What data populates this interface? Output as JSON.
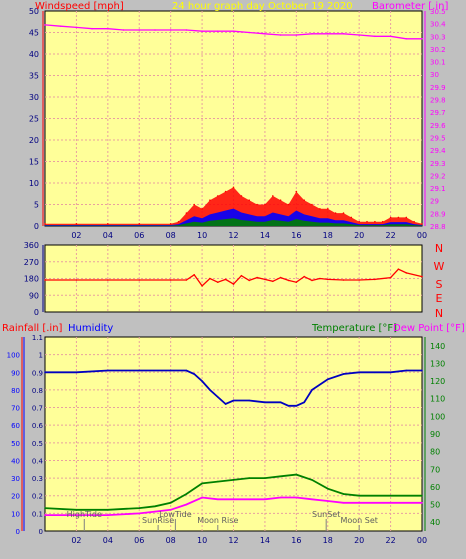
{
  "header": {
    "left_label": "Windspeed [mph]",
    "center_label": "24 hour graph day    October 19 2020",
    "right_label": "Barometer [.in]"
  },
  "panel3_header": {
    "rain_label": "Rainfall [.in]",
    "humidity_label": "Humidity",
    "temp_label": "Temperature [°F]",
    "dew_label": "Dew Point [°F]"
  },
  "compass": [
    "N",
    "W",
    "S",
    "E",
    "N"
  ],
  "events": [
    {
      "label": "HighTide",
      "hour": 2.5
    },
    {
      "label": "SunRise",
      "hour": 7.2
    },
    {
      "label": "LowTide",
      "hour": 8.3
    },
    {
      "label": "Moon Rise",
      "hour": 11.0
    },
    {
      "label": "SunSet",
      "hour": 17.9
    },
    {
      "label": "Moon Set",
      "hour": 20.0
    }
  ],
  "colors": {
    "plot_bg": "#ffff99",
    "grid": "#e8a0a0",
    "wind": "#ff0000",
    "gust_blue": "#0000ff",
    "gust_green": "#008000",
    "baro": "#ff00ff",
    "direction": "#ff0000",
    "humidity": "#0000c0",
    "temperature": "#008000",
    "dewpoint": "#ff00ff"
  },
  "chart_data": [
    {
      "type": "line",
      "title": "24 hour graph day    October 19 2020",
      "xlabel": "",
      "x_ticks": [
        "02",
        "04",
        "06",
        "08",
        "10",
        "12",
        "14",
        "16",
        "18",
        "20",
        "22",
        "00"
      ],
      "y_left_label": "Windspeed [mph]",
      "y_left_ticks": [
        "0",
        "5",
        "10",
        "15",
        "20",
        "25",
        "30",
        "35",
        "40",
        "45",
        "50"
      ],
      "y_left_range": [
        0,
        50
      ],
      "y_right_label": "Barometer [.in]",
      "y_right_ticks": [
        "28.8",
        "28.9",
        "29",
        "29.1",
        "29.2",
        "29.3",
        "29.4",
        "29.5",
        "29.6",
        "29.7",
        "29.8",
        "29.9",
        "30",
        "30.1",
        "30.2",
        "30.3",
        "30.4",
        "30.5"
      ],
      "y_right_range": [
        28.8,
        30.5
      ],
      "series": [
        {
          "name": "Windspeed [mph]",
          "axis": "left",
          "x": [
            0,
            2,
            4,
            6,
            8,
            8.5,
            9,
            9.5,
            10,
            10.5,
            11,
            11.5,
            12,
            12.5,
            13,
            13.5,
            14,
            14.5,
            15,
            15.5,
            16,
            16.5,
            17,
            17.5,
            18,
            18.5,
            19,
            19.5,
            20,
            20.5,
            21,
            21.5,
            22,
            22.5,
            23,
            23.5,
            24
          ],
          "y": [
            0.5,
            0.5,
            0.5,
            0.5,
            0.5,
            1,
            3,
            5,
            4,
            6,
            7,
            8,
            9,
            7,
            6,
            5,
            5,
            7,
            6,
            5,
            8,
            6,
            5,
            4,
            4,
            3,
            3,
            2,
            1,
            1,
            1,
            1,
            2,
            2,
            2,
            1,
            0.5
          ]
        },
        {
          "name": "Barometer [.in]",
          "axis": "right",
          "x": [
            0,
            1,
            2,
            3,
            4,
            5,
            6,
            7,
            8,
            9,
            10,
            11,
            12,
            13,
            14,
            15,
            16,
            17,
            18,
            19,
            20,
            21,
            22,
            23,
            24
          ],
          "y": [
            30.39,
            30.38,
            30.37,
            30.36,
            30.36,
            30.35,
            30.35,
            30.35,
            30.35,
            30.35,
            30.34,
            30.34,
            30.34,
            30.33,
            30.32,
            30.31,
            30.31,
            30.32,
            30.32,
            30.32,
            30.31,
            30.3,
            30.3,
            30.28,
            30.28
          ]
        }
      ]
    },
    {
      "type": "line",
      "xlabel": "",
      "y_ticks": [
        "360",
        "270",
        "180",
        "90",
        "0"
      ],
      "y_range": [
        0,
        360
      ],
      "series": [
        {
          "name": "Wind Direction",
          "x": [
            0,
            2,
            4,
            6,
            8,
            9,
            9.5,
            10,
            10.5,
            11,
            11.5,
            12,
            12.5,
            13,
            13.5,
            14,
            14.5,
            15,
            15.5,
            16,
            16.5,
            17,
            17.5,
            18,
            19,
            20,
            21,
            22,
            22.5,
            23,
            24
          ],
          "y": [
            172,
            172,
            172,
            172,
            172,
            172,
            200,
            140,
            180,
            160,
            175,
            150,
            195,
            170,
            185,
            175,
            165,
            185,
            170,
            160,
            190,
            170,
            180,
            175,
            172,
            172,
            175,
            185,
            230,
            210,
            190
          ]
        }
      ]
    },
    {
      "type": "line",
      "x_ticks": [
        "02",
        "04",
        "06",
        "08",
        "10",
        "12",
        "14",
        "16",
        "18",
        "20",
        "22",
        "00"
      ],
      "y_left_outer_label": "Rainfall [.in]",
      "y_left_outer_ticks": [
        "0",
        "0.1",
        "0.2",
        "0.3",
        "0.4",
        "0.5",
        "0.6",
        "0.7",
        "0.8",
        "0.9",
        "1",
        "1.1"
      ],
      "y_left_outer_range": [
        0,
        1.1
      ],
      "y_left_inner_label": "Humidity",
      "y_left_inner_ticks": [
        "0",
        "10",
        "20",
        "30",
        "40",
        "50",
        "60",
        "70",
        "80",
        "90",
        "100"
      ],
      "y_left_inner_range": [
        0,
        100
      ],
      "y_right_label": "Temperature [°F]",
      "y_right_ticks": [
        "40",
        "50",
        "60",
        "70",
        "80",
        "90",
        "100",
        "110",
        "120",
        "130",
        "140"
      ],
      "y_right_range": [
        35,
        145
      ],
      "series": [
        {
          "name": "Humidity",
          "axis": "left_inner",
          "x": [
            0,
            2,
            4,
            6,
            8,
            9,
            9.5,
            10,
            10.5,
            11,
            11.5,
            12,
            13,
            14,
            15,
            15.5,
            16,
            16.5,
            17,
            18,
            19,
            20,
            21,
            22,
            23,
            24
          ],
          "y": [
            90,
            90,
            91,
            91,
            91,
            91,
            89,
            85,
            80,
            76,
            72,
            74,
            74,
            73,
            73,
            71,
            71,
            73,
            80,
            86,
            89,
            90,
            90,
            90,
            91,
            91
          ]
        },
        {
          "name": "Temperature [°F]",
          "axis": "right",
          "x": [
            0,
            2,
            4,
            6,
            7,
            8,
            9,
            10,
            11,
            12,
            13,
            14,
            15,
            16,
            17,
            18,
            19,
            20,
            22,
            24
          ],
          "y": [
            48,
            47,
            47,
            48,
            49,
            51,
            56,
            62,
            63,
            64,
            65,
            65,
            66,
            67,
            64,
            59,
            56,
            55,
            55,
            55
          ]
        },
        {
          "name": "Dew Point [°F]",
          "axis": "right",
          "x": [
            0,
            2,
            4,
            6,
            7,
            8,
            9,
            10,
            11,
            12,
            13,
            14,
            15,
            16,
            17,
            18,
            19,
            20,
            22,
            24
          ],
          "y": [
            44,
            44,
            44,
            45,
            46,
            47,
            50,
            54,
            53,
            53,
            53,
            53,
            54,
            54,
            53,
            52,
            51,
            51,
            51,
            51
          ]
        }
      ]
    }
  ]
}
